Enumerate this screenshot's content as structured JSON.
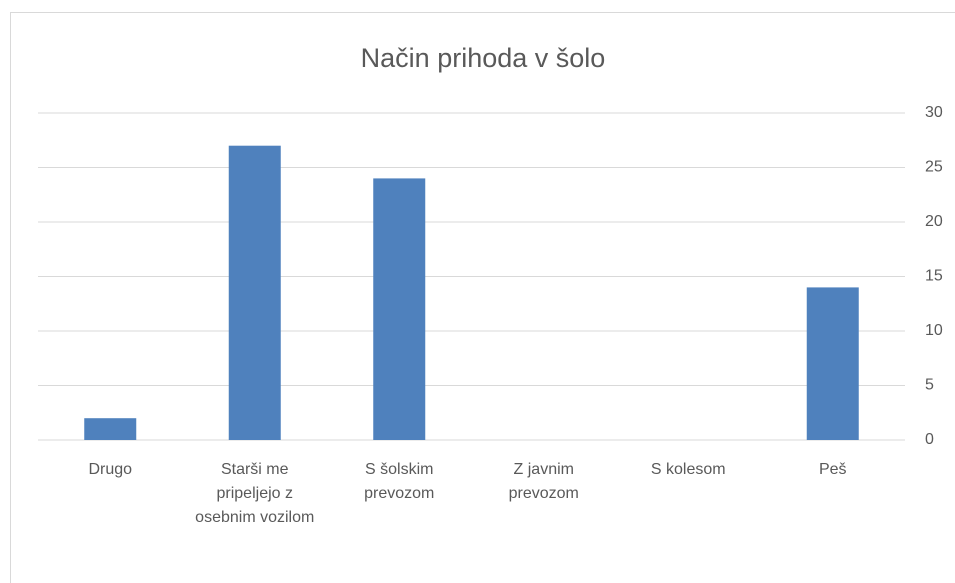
{
  "chart_data": {
    "type": "bar",
    "title": "Način prihoda v šolo",
    "categories": [
      "Drugo",
      "Starši me pripeljejo z osebnim vozilom",
      "S šolskim prevozom",
      "Z javnim prevozom",
      "S kolesom",
      "Peš"
    ],
    "values": [
      2,
      27,
      24,
      0,
      0,
      14
    ],
    "color": "#4f81bd",
    "ylim": [
      0,
      30
    ],
    "yticks": [
      0,
      5,
      10,
      15,
      20,
      25,
      30
    ],
    "grid": true,
    "y_axis_side": "right"
  }
}
